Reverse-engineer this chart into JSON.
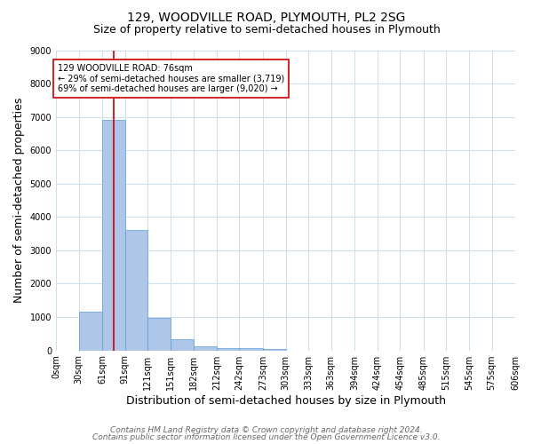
{
  "title": "129, WOODVILLE ROAD, PLYMOUTH, PL2 2SG",
  "subtitle": "Size of property relative to semi-detached houses in Plymouth",
  "xlabel": "Distribution of semi-detached houses by size in Plymouth",
  "ylabel": "Number of semi-detached properties",
  "bar_edges": [
    0,
    30,
    61,
    91,
    121,
    151,
    182,
    212,
    242,
    273,
    303,
    333,
    363,
    394,
    424,
    454,
    485,
    515,
    545,
    575,
    606
  ],
  "bar_heights": [
    0,
    1150,
    6900,
    3600,
    970,
    330,
    130,
    80,
    60,
    55,
    0,
    0,
    0,
    0,
    0,
    0,
    0,
    0,
    0,
    0
  ],
  "bar_color": "#aec6e8",
  "bar_edgecolor": "#5a9fd4",
  "property_size": 76,
  "red_line_color": "#cc0000",
  "annotation_text": "129 WOODVILLE ROAD: 76sqm\n← 29% of semi-detached houses are smaller (3,719)\n69% of semi-detached houses are larger (9,020) →",
  "annotation_box_color": "#ffffff",
  "annotation_border_color": "#cc0000",
  "ylim": [
    0,
    9000
  ],
  "yticks": [
    0,
    1000,
    2000,
    3000,
    4000,
    5000,
    6000,
    7000,
    8000,
    9000
  ],
  "tick_labels": [
    "0sqm",
    "30sqm",
    "61sqm",
    "91sqm",
    "121sqm",
    "151sqm",
    "182sqm",
    "212sqm",
    "242sqm",
    "273sqm",
    "303sqm",
    "333sqm",
    "363sqm",
    "394sqm",
    "424sqm",
    "454sqm",
    "485sqm",
    "515sqm",
    "545sqm",
    "575sqm",
    "606sqm"
  ],
  "footer1": "Contains HM Land Registry data © Crown copyright and database right 2024.",
  "footer2": "Contains public sector information licensed under the Open Government Licence v3.0.",
  "bg_color": "#ffffff",
  "grid_color": "#ccddee",
  "title_fontsize": 10,
  "subtitle_fontsize": 9,
  "axis_label_fontsize": 9,
  "tick_fontsize": 7,
  "annotation_fontsize": 7,
  "footer_fontsize": 6.5
}
